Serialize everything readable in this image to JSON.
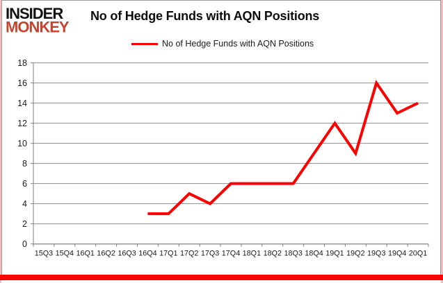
{
  "logo": {
    "line1": "INSIDER",
    "line2": "MONKEY"
  },
  "header": {
    "title": "No of Hedge Funds with AQN Positions"
  },
  "legend": {
    "label": "No of Hedge Funds with AQN Positions"
  },
  "colors": {
    "line": "#fe0000",
    "grid": "#8c8c8c",
    "axis": "#7f7f7f",
    "tick_text": "#1a1a1a",
    "logo_black": "#111111",
    "logo_red": "#c8432f",
    "frame_pink": "#f0bcbc",
    "frame_gray": "#999999",
    "bottom_bar": "#fe0000"
  },
  "chart_data": {
    "type": "line",
    "title": "No of Hedge Funds with AQN Positions",
    "legend_entries": [
      "No of Hedge Funds with AQN Positions"
    ],
    "legend_position": "top",
    "grid": true,
    "categories": [
      "15Q3",
      "15Q4",
      "16Q1",
      "16Q2",
      "16Q3",
      "16Q4",
      "17Q1",
      "17Q2",
      "17Q3",
      "17Q4",
      "18Q1",
      "18Q2",
      "18Q3",
      "18Q4",
      "19Q1",
      "19Q2",
      "19Q3",
      "19Q4",
      "20Q1"
    ],
    "series": [
      {
        "name": "No of Hedge Funds with AQN Positions",
        "color": "#fe0000",
        "values": [
          null,
          null,
          null,
          null,
          null,
          3,
          3,
          5,
          4,
          6,
          6,
          6,
          6,
          9,
          12,
          9,
          16,
          13,
          14
        ]
      }
    ],
    "xlabel": "",
    "ylabel": "",
    "ylim": [
      0,
      18
    ],
    "yticks": [
      0,
      2,
      4,
      6,
      8,
      10,
      12,
      14,
      16,
      18
    ]
  }
}
